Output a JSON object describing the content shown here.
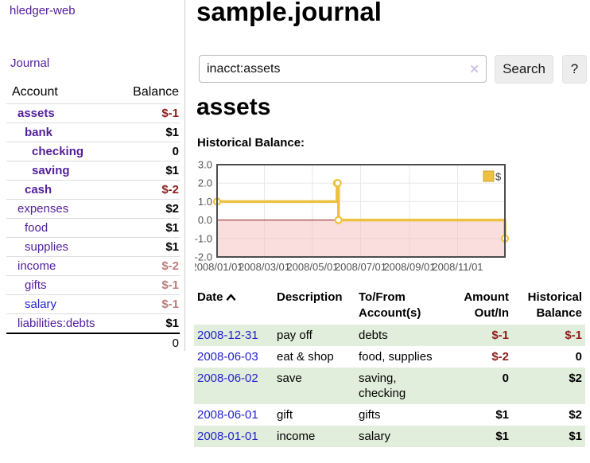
{
  "sidebar": {
    "brand": "hledger-web",
    "nav": {
      "journal_label": "Journal"
    },
    "accounts_table": {
      "headers": {
        "account": "Account",
        "balance": "Balance"
      },
      "rows": [
        {
          "name": "assets",
          "depth": 1,
          "bold": true,
          "balance": "$-1",
          "balance_style": "neg-strong",
          "link_style": "purple"
        },
        {
          "name": "bank",
          "depth": 2,
          "bold": true,
          "balance": "$1",
          "balance_style": "pos",
          "link_style": "purple"
        },
        {
          "name": "checking",
          "depth": 3,
          "bold": true,
          "balance": "0",
          "balance_style": "pos",
          "link_style": "purple"
        },
        {
          "name": "saving",
          "depth": 3,
          "bold": true,
          "balance": "$1",
          "balance_style": "pos",
          "link_style": "purple"
        },
        {
          "name": "cash",
          "depth": 2,
          "bold": true,
          "balance": "$-2",
          "balance_style": "neg-strong",
          "link_style": "purple"
        },
        {
          "name": "expenses",
          "depth": 1,
          "bold": false,
          "balance": "$2",
          "balance_style": "pos",
          "link_style": "purple"
        },
        {
          "name": "food",
          "depth": 2,
          "bold": false,
          "balance": "$1",
          "balance_style": "pos",
          "link_style": "purple"
        },
        {
          "name": "supplies",
          "depth": 2,
          "bold": false,
          "balance": "$1",
          "balance_style": "pos",
          "link_style": "purple"
        },
        {
          "name": "income",
          "depth": 1,
          "bold": false,
          "balance": "$-2",
          "balance_style": "neg-soft",
          "link_style": "purple"
        },
        {
          "name": "gifts",
          "depth": 2,
          "bold": false,
          "balance": "$-1",
          "balance_style": "neg-soft",
          "link_style": "purple"
        },
        {
          "name": "salary",
          "depth": 2,
          "bold": false,
          "balance": "$-1",
          "balance_style": "neg-soft",
          "link_style": "blue"
        },
        {
          "name": "liabilities:debts",
          "depth": 1,
          "bold": false,
          "balance": "$1",
          "balance_style": "pos",
          "link_style": "purple"
        }
      ],
      "total": "0"
    }
  },
  "header": {
    "title": "sample.journal"
  },
  "search": {
    "value": "inacct:assets",
    "clear_icon": "✕",
    "button_label": "Search",
    "help_label": "?"
  },
  "account_page": {
    "heading": "assets"
  },
  "chart_data": {
    "type": "line",
    "title": "Historical Balance:",
    "step": true,
    "series": [
      {
        "name": "$",
        "color": "#edc240",
        "points": [
          [
            "2008/01/01",
            1
          ],
          [
            "2008/06/01",
            2
          ],
          [
            "2008/06/02",
            2
          ],
          [
            "2008/06/03",
            0
          ],
          [
            "2008/12/31",
            -1
          ]
        ]
      }
    ],
    "x_range": [
      "2008/01/01",
      "2008/12/31"
    ],
    "x_ticks": [
      "2008/01/01",
      "2008/03/01",
      "2008/05/01",
      "2008/07/01",
      "2008/09/01",
      "2008/11/01"
    ],
    "y_ticks": [
      3.0,
      2.0,
      1.0,
      0.0,
      -1.0,
      -2.0
    ],
    "ylim": [
      -2,
      3
    ],
    "grid": true,
    "legend_position": "top-right",
    "negative_region_color": "#f5bcbc",
    "zero_line_color": "#8b1a1a",
    "axis_text_color": "#545454"
  },
  "register": {
    "columns": [
      {
        "label": "Date",
        "align": "left",
        "sorted": true
      },
      {
        "label": "Description",
        "align": "left",
        "sorted": false
      },
      {
        "label": "To/From Account(s)",
        "align": "left",
        "sorted": false
      },
      {
        "label": "Amount Out/In",
        "align": "right",
        "sorted": false
      },
      {
        "label": "Historical Balance",
        "align": "right",
        "sorted": false
      }
    ],
    "rows": [
      {
        "date": "2008-12-31",
        "description": "pay off",
        "accounts": "debts",
        "amount": "$-1",
        "amount_neg": true,
        "balance": "$-1",
        "balance_neg": true
      },
      {
        "date": "2008-06-03",
        "description": "eat & shop",
        "accounts": "food, supplies",
        "amount": "$-2",
        "amount_neg": true,
        "balance": "0",
        "balance_neg": false
      },
      {
        "date": "2008-06-02",
        "description": "save",
        "accounts": "saving, checking",
        "amount": "0",
        "amount_neg": false,
        "balance": "$2",
        "balance_neg": false
      },
      {
        "date": "2008-06-01",
        "description": "gift",
        "accounts": "gifts",
        "amount": "$1",
        "amount_neg": false,
        "balance": "$2",
        "balance_neg": false
      },
      {
        "date": "2008-01-01",
        "description": "income",
        "accounts": "salary",
        "amount": "$1",
        "amount_neg": false,
        "balance": "$1",
        "balance_neg": false
      }
    ]
  },
  "colors": {
    "link_purple": "#53209b",
    "link_blue": "#2323cc",
    "negative_strong": "#8f1d1d",
    "negative_soft": "#bd7d7d",
    "row_green": "#e2eedc",
    "series_gold": "#edc240"
  }
}
